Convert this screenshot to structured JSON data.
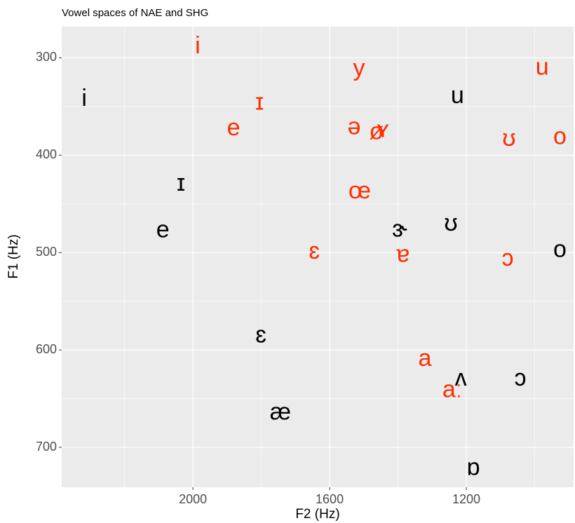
{
  "chart_data": {
    "type": "scatter",
    "title": "Vowel spaces of NAE and SHG",
    "x_label": "F2 (Hz)",
    "y_label": "F1 (Hz)",
    "xlim": [
      2384,
      886
    ],
    "ylim": [
      268,
      741
    ],
    "xticks": [
      2000,
      1600,
      1200
    ],
    "yticks": [
      300,
      400,
      500,
      600,
      700
    ],
    "x_reversed": true,
    "y_reversed": true,
    "grid": true,
    "series": [
      {
        "color": "#000000",
        "labels": [
          "i",
          "ɪ",
          "e",
          "ɛ",
          "æ",
          "ɝ",
          "ʊ",
          "u",
          "o",
          "ʌ",
          "ɔ",
          "ɒ"
        ],
        "x": [
          2318,
          2035,
          2088,
          1801,
          1744,
          1395,
          1245,
          1226,
          926,
          1216,
          1042,
          1179
        ],
        "values": [
          343,
          430,
          478,
          586,
          665,
          477,
          471,
          340,
          498,
          630,
          630,
          722
        ]
      },
      {
        "color": "#ff2d00",
        "labels": [
          "i",
          "y",
          "u",
          "ɪ",
          "e",
          "ə",
          "ø",
          "ʏ",
          "ʊ",
          "o",
          "œ",
          "ɛ",
          "ɐ",
          "ɔ",
          "a",
          "aː"
        ],
        "x": [
          1986,
          1514,
          978,
          1805,
          1881,
          1528,
          1463,
          1444,
          1075,
          926,
          1512,
          1645,
          1385,
          1079,
          1321,
          1241
        ],
        "values": [
          289,
          312,
          311,
          347,
          373,
          372,
          377,
          375,
          384,
          382,
          438,
          500,
          503,
          507,
          610,
          642
        ]
      }
    ]
  }
}
